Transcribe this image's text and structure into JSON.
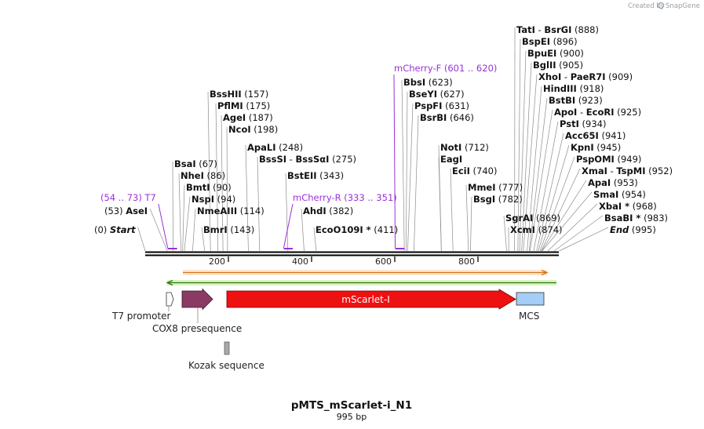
{
  "plasmid": {
    "name": "pMTS_mScarlet-i_N1",
    "length_label": "995 bp"
  },
  "branding": {
    "created_by": "Created by",
    "brand": "SnapGene"
  },
  "ruler": {
    "ticks": [
      "200",
      "400",
      "600",
      "800"
    ]
  },
  "enzymes": [
    {
      "name": "TatI",
      "sep": " - ",
      "name2": "BsrGI",
      "pos": "(888)",
      "site": 888
    },
    {
      "name": "BspEI",
      "pos": "(896)",
      "site": 896
    },
    {
      "name": "BpuEI",
      "pos": "(900)",
      "site": 900
    },
    {
      "name": "BglII",
      "pos": "(905)",
      "site": 905
    },
    {
      "name": "XhoI",
      "sep": " - ",
      "name2": "PaeR7I",
      "pos": "(909)",
      "site": 909
    },
    {
      "name": "HindIII",
      "pos": "(918)",
      "site": 918
    },
    {
      "name": "BstBI",
      "pos": "(923)",
      "site": 923
    },
    {
      "name": "ApoI",
      "sep": " - ",
      "name2": "EcoRI",
      "pos": "(925)",
      "site": 925
    },
    {
      "name": "PstI",
      "pos": "(934)",
      "site": 934
    },
    {
      "name": "Acc65I",
      "pos": "(941)",
      "site": 941
    },
    {
      "name": "KpnI",
      "pos": "(945)",
      "site": 945
    },
    {
      "name": "PspOMI",
      "pos": "(949)",
      "site": 949
    },
    {
      "name": "XmaI",
      "sep": " - ",
      "name2": "TspMI",
      "pos": "(952)",
      "site": 952
    },
    {
      "name": "ApaI",
      "pos": "(953)",
      "site": 953
    },
    {
      "name": "SmaI",
      "pos": "(954)",
      "site": 954
    },
    {
      "name": "XbaI *",
      "pos": "(968)",
      "site": 968
    },
    {
      "name": "BsaBI *",
      "pos": "(983)",
      "site": 983
    },
    {
      "name": "End",
      "pos": "(995)",
      "site": 995
    },
    {
      "name": "NotI",
      "pos": "(712)",
      "site": 712
    },
    {
      "name": "EagI",
      "pos": "",
      "site": 712
    },
    {
      "name": "EciI",
      "pos": "(740)",
      "site": 740
    },
    {
      "name": "MmeI",
      "pos": "(777)",
      "site": 777
    },
    {
      "name": "BsgI",
      "pos": "(782)",
      "site": 782
    },
    {
      "name": "SgrAI",
      "pos": "(869)",
      "site": 869
    },
    {
      "name": "XcmI",
      "pos": "(874)",
      "site": 874
    },
    {
      "name": "BbsI",
      "pos": "(623)",
      "site": 623
    },
    {
      "name": "BseYI",
      "pos": "(627)",
      "site": 627
    },
    {
      "name": "PspFI",
      "pos": "(631)",
      "site": 631
    },
    {
      "name": "BsrBI",
      "pos": "(646)",
      "site": 646
    },
    {
      "name": "BssHII",
      "pos": "(157)",
      "site": 157
    },
    {
      "name": "PflMI",
      "pos": "(175)",
      "site": 175
    },
    {
      "name": "AgeI",
      "pos": "(187)",
      "site": 187
    },
    {
      "name": "NcoI",
      "pos": "(198)",
      "site": 198
    },
    {
      "name": "ApaLI",
      "pos": "(248)",
      "site": 248
    },
    {
      "name": "BssSI",
      "sep": " - ",
      "name2": "BssSαI",
      "pos": "(275)",
      "site": 275
    },
    {
      "name": "BsaI",
      "pos": "(67)",
      "site": 67
    },
    {
      "name": "NheI",
      "pos": "(86)",
      "site": 86
    },
    {
      "name": "BmtI",
      "pos": "(90)",
      "site": 90
    },
    {
      "name": "NspI",
      "pos": "(94)",
      "site": 94
    },
    {
      "name": "NmeAIII",
      "pos": "(114)",
      "site": 114
    },
    {
      "name": "BmrI",
      "pos": "(143)",
      "site": 143
    },
    {
      "name": "BstEII",
      "pos": "(343)",
      "site": 343
    },
    {
      "name": "AhdI",
      "pos": "(382)",
      "site": 382
    },
    {
      "name": "EcoO109I *",
      "pos": "(411)",
      "site": 411
    },
    {
      "name": "AseI",
      "pos": "(53)",
      "site": 53
    },
    {
      "name": "Start",
      "pos": "(0)",
      "site": 0
    }
  ],
  "primers": [
    {
      "name": "T7",
      "range": "(54 .. 73)",
      "start": 54,
      "end": 73
    },
    {
      "name": "mCherry-R",
      "range": "(333 .. 351)",
      "start": 333,
      "end": 351
    },
    {
      "name": "mCherry-F",
      "range": "(601 .. 620)",
      "start": 601,
      "end": 620
    }
  ],
  "features": [
    {
      "name": "T7 promoter",
      "start": 54,
      "end": 73
    },
    {
      "name": "COX8 presequence",
      "start": 90,
      "end": 164
    },
    {
      "name": "mScarlet-I",
      "start": 198,
      "end": 894
    },
    {
      "name": "MCS",
      "start": 898,
      "end": 966
    },
    {
      "name": "Kozak sequence",
      "start": 193,
      "end": 203
    }
  ],
  "colors": {
    "primer": "#9b30d9",
    "cox8": "#8b3a62",
    "mscarlet": "#ee1111",
    "mcs": "#a4cdf7",
    "kozak": "#a9a9a9",
    "orange_arrow": "#d4741c",
    "green_arrow": "#2c7a12"
  }
}
